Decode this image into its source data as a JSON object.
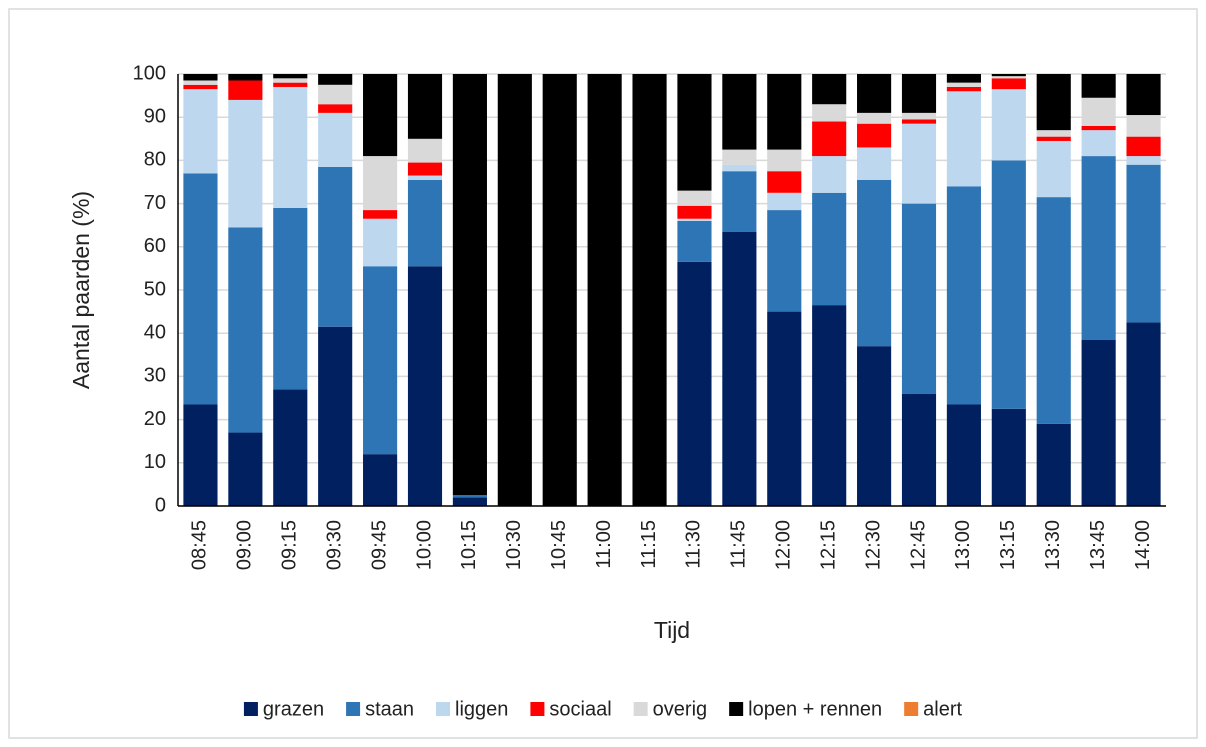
{
  "chart_data": {
    "type": "stacked_bar",
    "x_label": "Tijd",
    "y_label": "Aantal paarden (%)",
    "categories": [
      "08:45",
      "09:00",
      "09:15",
      "09:30",
      "09:45",
      "10:00",
      "10:15",
      "10:30",
      "10:45",
      "11:00",
      "11:15",
      "11:30",
      "11:45",
      "12:00",
      "12:15",
      "12:30",
      "12:45",
      "13:00",
      "13:15",
      "13:30",
      "13:45",
      "14:00"
    ],
    "series": [
      {
        "name": "grazen",
        "color": "#002060",
        "values": [
          23.5,
          17,
          27,
          41.5,
          12,
          55.5,
          2,
          0,
          0,
          0,
          0,
          56.5,
          63.5,
          45,
          46.5,
          37,
          26,
          23.5,
          22.5,
          19,
          38.5,
          42.5
        ]
      },
      {
        "name": "staan",
        "color": "#2e75b6",
        "values": [
          53.5,
          47.5,
          42,
          37,
          43.5,
          20,
          0.5,
          0,
          0,
          0,
          0,
          9.5,
          14,
          23.5,
          26,
          38.5,
          44,
          50.5,
          57.5,
          52.5,
          42.5,
          36.5
        ]
      },
      {
        "name": "liggen",
        "color": "#bdd7ee",
        "values": [
          19.5,
          29.5,
          28,
          12.5,
          11,
          1,
          0,
          0,
          0,
          0,
          0,
          0.5,
          1.5,
          4,
          8.5,
          7.5,
          18.5,
          22,
          16.5,
          13,
          6,
          2
        ]
      },
      {
        "name": "sociaal",
        "color": "#ff0000",
        "values": [
          1,
          4.5,
          1,
          2,
          2,
          3,
          0,
          0,
          0,
          0,
          0,
          3,
          0,
          5,
          8,
          5.5,
          1,
          1,
          2.5,
          1,
          1,
          4.5
        ]
      },
      {
        "name": "overig",
        "color": "#d9d9d9",
        "values": [
          1,
          0,
          1,
          4.5,
          12.5,
          5.5,
          0,
          0,
          0,
          0,
          0,
          3.5,
          3.5,
          5,
          4,
          2.5,
          1.5,
          1,
          0.5,
          1.5,
          6.5,
          5
        ]
      },
      {
        "name": "lopen + rennen",
        "color": "#000000",
        "values": [
          1.5,
          1.5,
          1,
          2.5,
          19,
          15,
          97.5,
          100,
          100,
          100,
          100,
          27,
          17.5,
          17.5,
          7,
          9,
          9,
          2,
          0.5,
          13,
          5.5,
          9.5
        ]
      },
      {
        "name": "alert",
        "color": "#ed7d31",
        "values": [
          0,
          0,
          0,
          0,
          0,
          0,
          0,
          0,
          0,
          0,
          0,
          0,
          0,
          0,
          0,
          0,
          0,
          0,
          0,
          0,
          0,
          0
        ]
      }
    ],
    "ylim": [
      0,
      100
    ],
    "yticks": [
      0,
      10,
      20,
      30,
      40,
      50,
      60,
      70,
      80,
      90,
      100
    ],
    "grid": true,
    "legend": "bottom"
  }
}
